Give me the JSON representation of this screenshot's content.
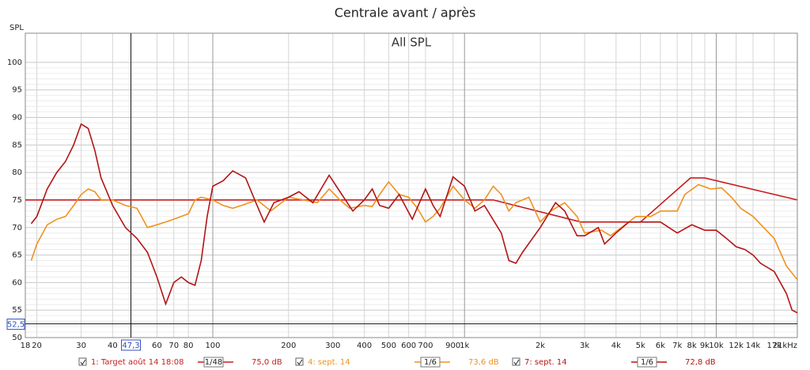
{
  "chart_data": {
    "type": "line",
    "title": "Centrale avant / après",
    "subtitle": "All SPL",
    "y_label": "SPL",
    "log_x": true,
    "grid": true,
    "xlim": [
      18,
      21000
    ],
    "ylim": [
      50,
      105.3
    ],
    "xticks": [
      18,
      20,
      30,
      40,
      60,
      70,
      80,
      100,
      200,
      300,
      400,
      500,
      600,
      700,
      900,
      {
        "value": 1000,
        "label": "1k"
      },
      {
        "value": 2000,
        "label": "2k"
      },
      {
        "value": 3000,
        "label": "3k"
      },
      {
        "value": 4000,
        "label": "4k"
      },
      {
        "value": 5000,
        "label": "5k"
      },
      {
        "value": 6000,
        "label": "6k"
      },
      {
        "value": 7000,
        "label": "7k"
      },
      {
        "value": 8000,
        "label": "8k"
      },
      {
        "value": 9000,
        "label": "9k"
      },
      {
        "value": 10000,
        "label": "10k"
      },
      {
        "value": 12000,
        "label": "12k"
      },
      {
        "value": 14000,
        "label": "14k"
      },
      {
        "value": 17000,
        "label": "17k"
      },
      {
        "value": 21000,
        "label": "21kHz"
      }
    ],
    "yticks": [
      50,
      55,
      60,
      65,
      70,
      75,
      80,
      85,
      90,
      95,
      100
    ],
    "cursor": {
      "x": {
        "value": 47.3,
        "label": "47,3"
      },
      "y": {
        "value": 52.5,
        "label": "52,5"
      }
    },
    "series": [
      {
        "name": "1: Target août 14 18:08",
        "color": "#c81e1e",
        "smoothing": "1/48",
        "level": "75,0 dB",
        "x": [
          18,
          1300,
          2900,
          5000,
          7900,
          9000,
          21000
        ],
        "values": [
          75,
          75,
          71,
          71,
          79,
          79,
          75
        ]
      },
      {
        "name": "4: sept. 14",
        "color": "#f0921e",
        "smoothing": "1/6",
        "level": "73,6 dB",
        "x": [
          19,
          20,
          22,
          24,
          26,
          28,
          30,
          32,
          34,
          36,
          40,
          45,
          50,
          55,
          60,
          65,
          70,
          80,
          85,
          90,
          100,
          110,
          120,
          130,
          150,
          170,
          200,
          230,
          260,
          290,
          320,
          350,
          400,
          430,
          460,
          500,
          550,
          600,
          650,
          700,
          750,
          800,
          900,
          1000,
          1100,
          1200,
          1300,
          1400,
          1500,
          1600,
          1800,
          2000,
          2200,
          2500,
          2800,
          3000,
          3500,
          3800,
          4200,
          4800,
          5500,
          6000,
          7000,
          7500,
          8500,
          9500,
          10500,
          11500,
          12500,
          14000,
          17000,
          19000,
          21000
        ],
        "values": [
          64,
          67,
          70.5,
          71.5,
          72,
          74,
          76,
          77,
          76.5,
          75,
          75,
          74,
          73.5,
          70,
          70.5,
          71,
          71.5,
          72.5,
          75,
          75.5,
          75,
          74,
          73.5,
          74,
          75,
          73,
          75.5,
          75,
          74.5,
          77,
          75,
          73.5,
          74,
          73.8,
          76,
          78.3,
          76,
          75.5,
          73.5,
          71,
          72,
          73.5,
          77.5,
          75,
          73.5,
          75,
          77.5,
          76,
          73,
          74.5,
          75.5,
          71,
          73,
          74.5,
          72,
          69,
          69.5,
          68.5,
          70,
          72,
          72,
          73,
          73,
          76,
          77.8,
          77,
          77.2,
          75.5,
          73.5,
          72,
          68,
          63,
          60.5
        ]
      },
      {
        "name": "7: sept. 14",
        "color": "#b41414",
        "smoothing": "1/6",
        "level": "72,8 dB",
        "x": [
          19,
          20,
          22,
          24,
          26,
          28,
          30,
          32,
          34,
          36,
          40,
          45,
          50,
          55,
          60,
          65,
          70,
          75,
          80,
          85,
          90,
          95,
          100,
          110,
          120,
          135,
          150,
          160,
          175,
          200,
          220,
          250,
          290,
          320,
          360,
          400,
          430,
          460,
          500,
          550,
          620,
          700,
          750,
          800,
          900,
          1000,
          1100,
          1200,
          1400,
          1500,
          1600,
          1700,
          2000,
          2300,
          2500,
          2800,
          3000,
          3400,
          3600,
          4000,
          4500,
          5000,
          6000,
          7000,
          8000,
          9000,
          10000,
          11000,
          12000,
          13000,
          14000,
          15000,
          17000,
          19000,
          20000,
          21000
        ],
        "values": [
          70.7,
          72,
          77,
          80,
          82,
          85,
          88.8,
          88,
          84,
          79,
          74,
          70,
          68,
          65.5,
          61,
          56.1,
          60,
          61,
          60,
          59.5,
          64,
          72,
          77.5,
          78.5,
          80.3,
          79,
          74,
          71,
          74.5,
          75.5,
          76.5,
          74.5,
          79.5,
          76.5,
          73,
          75,
          77,
          74,
          73.5,
          76,
          71.5,
          77,
          74,
          72,
          79.2,
          77.5,
          73,
          74,
          69,
          64,
          63.5,
          65.5,
          70,
          74.5,
          73,
          68.5,
          68.5,
          70,
          67,
          69,
          71,
          71,
          71,
          69,
          70.5,
          69.5,
          69.5,
          68,
          66.5,
          66,
          65,
          63.5,
          62,
          58,
          55,
          54.5
        ]
      }
    ]
  }
}
